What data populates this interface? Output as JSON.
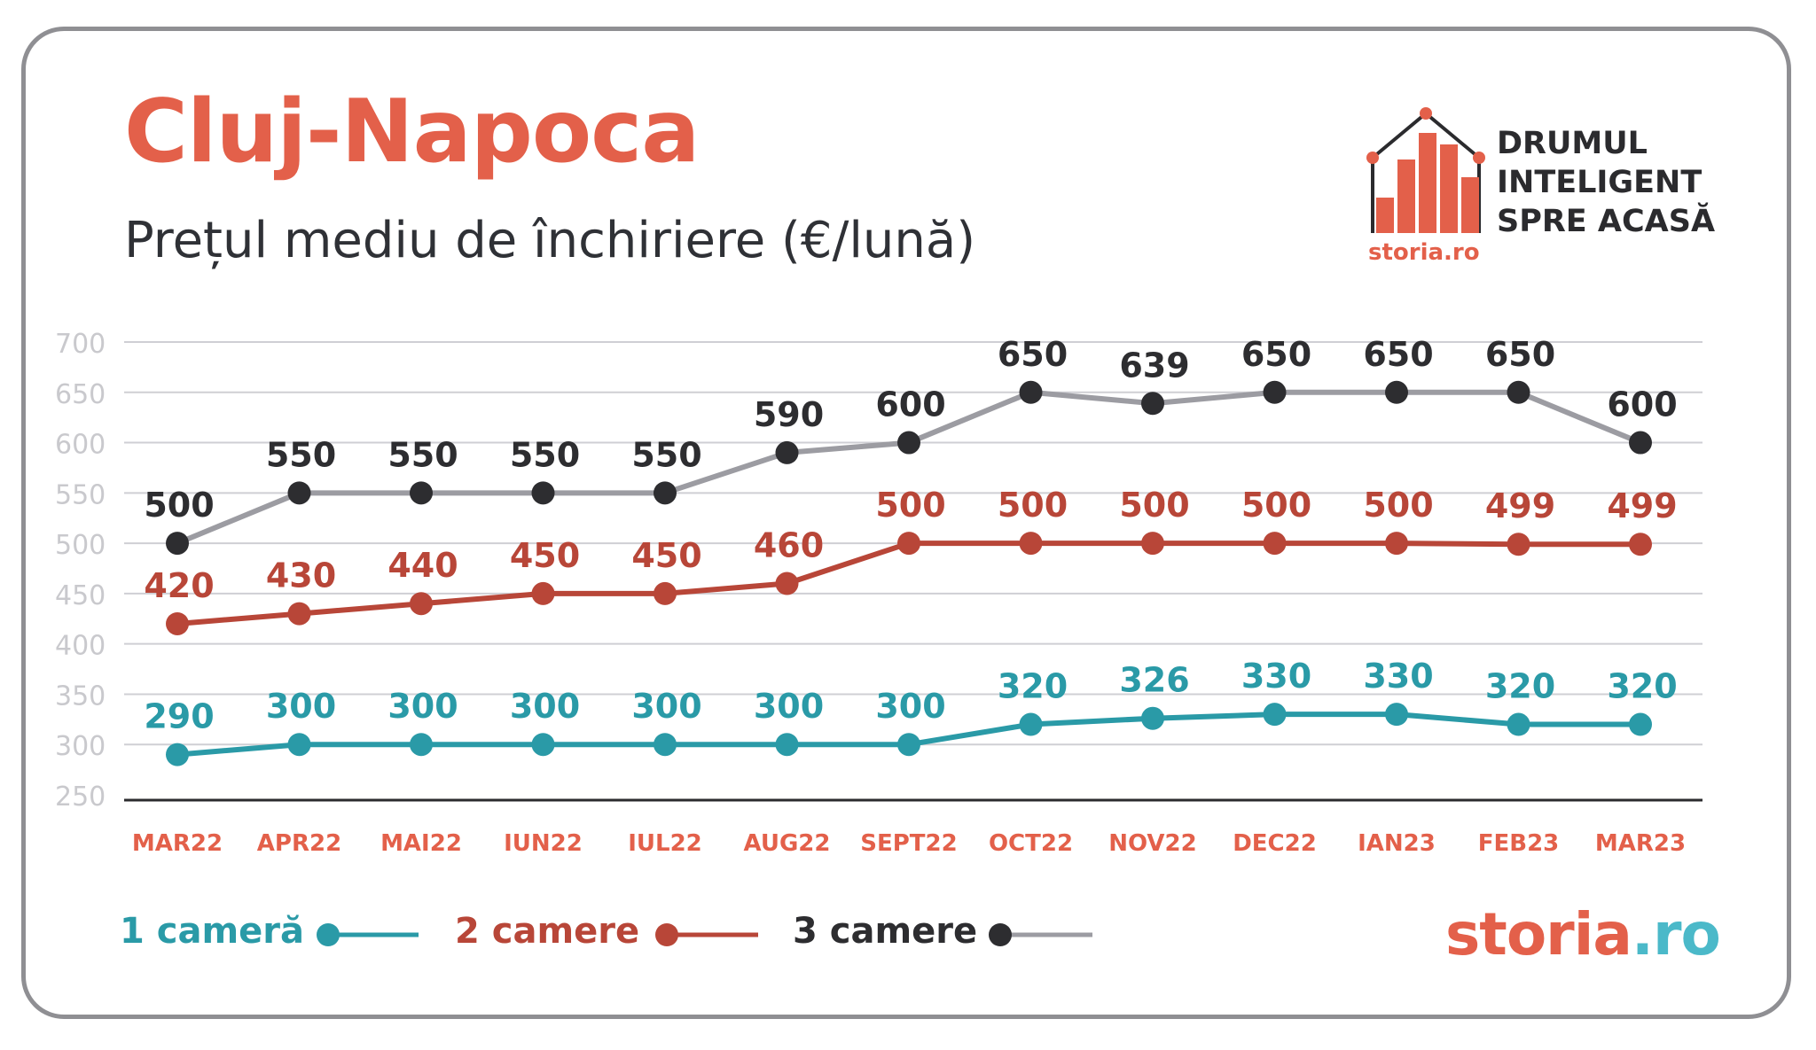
{
  "header": {
    "title": "Cluj-Napoca",
    "subtitle": "Prețul mediu de închiriere (€/lună)"
  },
  "logo": {
    "icon": "house-bar-chart-icon",
    "small_brand": "storia.ro",
    "tagline": [
      "DRUMUL",
      "INTELIGENT",
      "SPRE ACASĂ"
    ]
  },
  "brand": {
    "part1": "storia",
    "part2": ".ro"
  },
  "colors": {
    "title": "#e3604a",
    "axis_label": "#e3604a",
    "series_1": "#2a9aa7",
    "series_2": "#b84638",
    "series_3_line": "#9c9ca2",
    "series_3_marker": "#2d2d30",
    "grid": "#cfcfd4",
    "tick": "#c9c9cd"
  },
  "legend": [
    {
      "label": "1 cameră",
      "color": "#2a9aa7"
    },
    {
      "label": "2 camere",
      "color": "#b84638"
    },
    {
      "label": "3 camere",
      "color": "#2d2d30"
    }
  ],
  "chart_data": {
    "type": "line",
    "title": "Cluj-Napoca",
    "subtitle": "Prețul mediu de închiriere (€/lună)",
    "categories": [
      "MAR22",
      "APR22",
      "MAI22",
      "IUN22",
      "IUL22",
      "AUG22",
      "SEPT22",
      "OCT22",
      "NOV22",
      "DEC22",
      "IAN23",
      "FEB23",
      "MAR23"
    ],
    "yticks": [
      "700",
      "650",
      "600",
      "550",
      "500",
      "450",
      "400",
      "350",
      "300",
      "250"
    ],
    "ylim": [
      250,
      700
    ],
    "grid": true,
    "legend_position": "bottom-left",
    "series": [
      {
        "name": "1 cameră",
        "values": [
          290,
          300,
          300,
          300,
          300,
          300,
          300,
          320,
          326,
          330,
          330,
          320,
          320
        ]
      },
      {
        "name": "2 camere",
        "values": [
          420,
          430,
          440,
          450,
          450,
          460,
          500,
          500,
          500,
          500,
          500,
          499,
          499
        ]
      },
      {
        "name": "3 camere",
        "values": [
          500,
          550,
          550,
          550,
          550,
          590,
          600,
          650,
          639,
          650,
          650,
          650,
          600
        ]
      }
    ]
  }
}
